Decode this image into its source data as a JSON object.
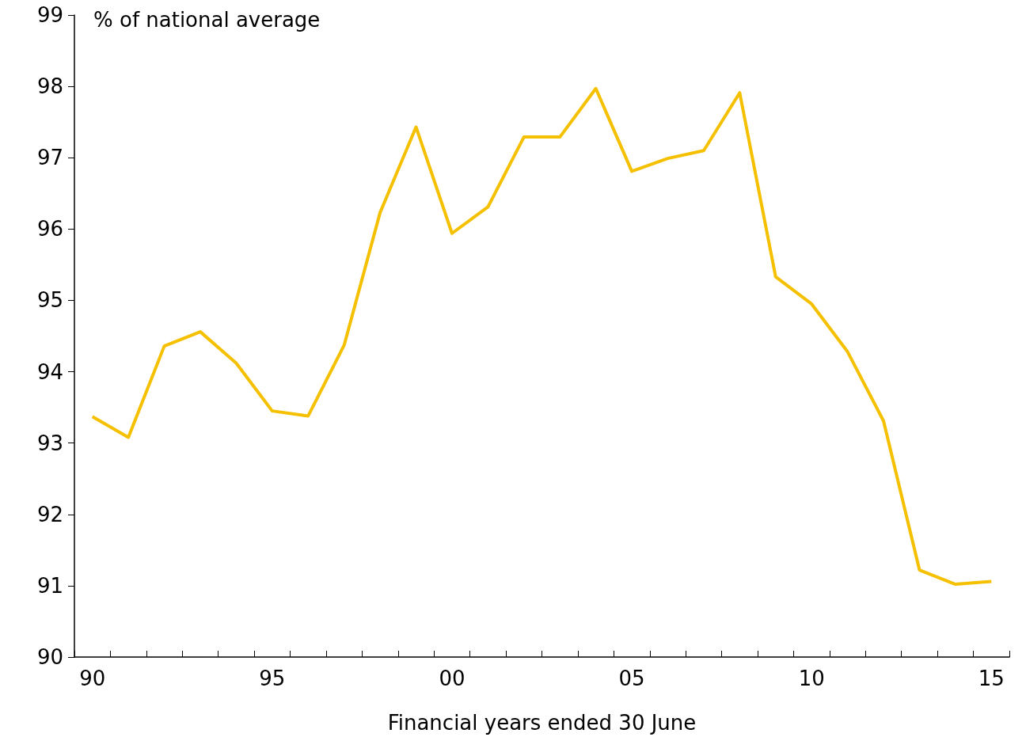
{
  "chart_data": {
    "type": "line",
    "ylabel": "% of national average",
    "xlabel": "Financial years ended 30 June",
    "categories": [
      "90",
      null,
      null,
      null,
      null,
      "95",
      null,
      null,
      null,
      null,
      "00",
      null,
      null,
      null,
      null,
      "05",
      null,
      null,
      null,
      null,
      "10",
      null,
      null,
      null,
      null,
      "15"
    ],
    "series": [
      {
        "color": "#f5c000",
        "values": [
          93.37,
          93.08,
          94.36,
          94.56,
          94.12,
          93.45,
          93.38,
          94.37,
          96.23,
          97.43,
          95.94,
          96.31,
          97.29,
          97.29,
          97.97,
          96.81,
          96.99,
          97.1,
          97.91,
          95.33,
          94.95,
          94.28,
          93.31,
          91.22,
          91.02,
          91.06
        ]
      }
    ],
    "ylim": [
      90,
      99
    ],
    "yticks": [
      90,
      91,
      92,
      93,
      94,
      95,
      96,
      97,
      98,
      99
    ]
  }
}
